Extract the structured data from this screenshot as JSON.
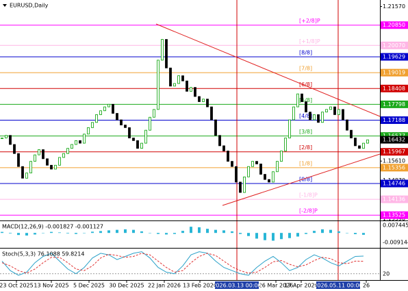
{
  "chart_data": [
    {
      "type": "candlestick",
      "title": "EURUSD,Daily",
      "values": [
        1.165,
        1.166,
        1.1625,
        1.159,
        1.154,
        1.1495,
        1.1515,
        1.156,
        1.1585,
        1.1605,
        1.157,
        1.1545,
        1.153,
        1.1545,
        1.1575,
        1.159,
        1.161,
        1.1625,
        1.164,
        1.163,
        1.1665,
        1.169,
        1.171,
        1.174,
        1.1755,
        1.177,
        1.178,
        1.1745,
        1.172,
        1.17,
        1.169,
        1.165,
        1.164,
        1.161,
        1.163,
        1.168,
        1.173,
        1.176,
        1.195,
        1.203,
        1.192,
        1.185,
        1.186,
        1.189,
        1.187,
        1.183,
        1.1845,
        1.181,
        1.179,
        1.18,
        1.177,
        1.172,
        1.166,
        1.162,
        1.16,
        1.156,
        1.154,
        1.148,
        1.144,
        1.15,
        1.154,
        1.156,
        1.155,
        1.151,
        1.149,
        1.148,
        1.152,
        1.156,
        1.16,
        1.165,
        1.172,
        1.177,
        1.182,
        1.179,
        1.175,
        1.172,
        1.174,
        1.171,
        1.175,
        1.176,
        1.177,
        1.174,
        1.176,
        1.172,
        1.168,
        1.165,
        1.162,
        1.161,
        1.163,
        1.1643
      ],
      "up_color": "#00a000",
      "down_color": "#000000",
      "xlim": [
        -0.5,
        92
      ],
      "ylim": [
        1.1332,
        1.2182
      ],
      "yticks": [
        {
          "value": 1.2157,
          "label": "1.21570"
        },
        {
          "value": 1.1561,
          "label": "1.15610"
        },
        {
          "value": 1.1487,
          "label": "1.14870"
        },
        {
          "value": 1.1339,
          "label": "1.13390"
        }
      ],
      "xticks": [
        {
          "value": 3.5,
          "label": "23 Oct 2025"
        },
        {
          "value": 12,
          "label": "13 Nov 2025"
        },
        {
          "value": 21.17,
          "label": "5 Dec 2025"
        },
        {
          "value": 30.33,
          "label": "30 Dec 2025"
        },
        {
          "value": 39.5,
          "label": "22 Jan 2026"
        },
        {
          "value": 48.17,
          "label": "13 Feb 2026"
        },
        {
          "value": 66.67,
          "label": "26 Mar 2026"
        },
        {
          "value": 72.83,
          "label": "17 Apr 2026"
        },
        {
          "value": 88.67,
          "label": "26"
        }
      ],
      "vlines": [
        {
          "value": 57.17,
          "label": "2026.03.13 00:00"
        },
        {
          "value": 81.83,
          "label": "2026.05.11 00:00"
        }
      ],
      "levels": [
        {
          "name": "[+2/8]P",
          "value": 1.2085,
          "label": "1.20850",
          "color": "#ff00ff"
        },
        {
          "name": "[+1/8]P",
          "value": 1.2007,
          "label": "1.20070",
          "color": "#ffb6e6"
        },
        {
          "name": "[8/8]",
          "value": 1.19629,
          "label": "1.19629",
          "color": "#0000cc"
        },
        {
          "name": "[7/8]",
          "value": 1.19019,
          "label": "1.19019",
          "color": "#f0a030"
        },
        {
          "name": "[6/8]",
          "value": 1.18408,
          "label": "1.18408",
          "color": "#d00000"
        },
        {
          "name": "[5/8]",
          "value": 1.17798,
          "label": "1.17798",
          "color": "#1aa81a"
        },
        {
          "name": "[4/8]",
          "value": 1.17188,
          "label": "1.17188",
          "color": "#0000cc"
        },
        {
          "name": "[3/8]",
          "value": 1.16577,
          "label": "1.16577",
          "color": "#1aa81a"
        },
        {
          "name": "[2/8]",
          "value": 1.15967,
          "label": "1.15967",
          "color": "#d00000"
        },
        {
          "name": "[1/8]",
          "value": 1.15356,
          "label": "1.15356",
          "color": "#f0a030"
        },
        {
          "name": "[0/8]",
          "value": 1.14746,
          "label": "1.14746",
          "color": "#0000cc"
        },
        {
          "name": "[-1/8]P",
          "value": 1.14136,
          "label": "1.14136",
          "color": "#ffb6e6"
        },
        {
          "name": "[-2/8]P",
          "value": 1.13525,
          "label": "1.13525",
          "color": "#ff00ff"
        }
      ],
      "last_price": {
        "value": 1.16432,
        "label": "1.16432"
      },
      "trendlines": [
        {
          "x": [
            37.5,
            92
          ],
          "values": [
            1.20896,
            1.17332
          ],
          "color": "#e02020"
        },
        {
          "x": [
            53.67,
            92
          ],
          "values": [
            1.139,
            1.1588
          ],
          "color": "#e02020"
        }
      ]
    },
    {
      "type": "bar",
      "title": "MACD(12,26,9) -0.001827 -0.001127",
      "values": [
        0.001,
        -0.0005,
        -0.002,
        -0.0025,
        -0.0015,
        0,
        0.001,
        0.0005,
        -0.0005,
        -0.001,
        0,
        0.0012,
        0.0018,
        0.0025,
        0.003,
        0.0035,
        0.003,
        0.0015,
        0,
        -0.001,
        -0.0015,
        -0.001,
        0.002,
        0.006,
        0.0055,
        0.004,
        0.003,
        0.0025,
        0.0015,
        -0.001,
        -0.003,
        -0.0055,
        -0.007,
        -0.0075,
        -0.006,
        -0.005,
        -0.0035,
        -0.001,
        0.002,
        0.0035,
        0.003,
        0.0015,
        0,
        -0.0012,
        -0.0018
      ],
      "color": "#29b6d6",
      "xlim": [
        -0.25,
        46
      ],
      "ylim": [
        -0.0138,
        0.0114
      ],
      "yticks": [
        0.007445,
        -0.009144
      ]
    },
    {
      "type": "line",
      "title": "Stoch(5,3,3) 76.1088 59.8214",
      "series": [
        {
          "color": "#29a0c8",
          "values": [
            60,
            30,
            15,
            25,
            55,
            75,
            85,
            60,
            35,
            20,
            40,
            70,
            85,
            80,
            65,
            75,
            85,
            90,
            70,
            40,
            25,
            20,
            45,
            80,
            90,
            85,
            60,
            40,
            30,
            20,
            15,
            40,
            60,
            75,
            55,
            30,
            40,
            65,
            80,
            70,
            55,
            45,
            60,
            75,
            76.1
          ]
        },
        {
          "color": "#e03030",
          "dash": true,
          "values": [
            55,
            45,
            30,
            22,
            35,
            55,
            72,
            72,
            55,
            35,
            30,
            45,
            70,
            82,
            78,
            72,
            75,
            85,
            80,
            60,
            40,
            25,
            30,
            55,
            75,
            85,
            78,
            60,
            42,
            30,
            22,
            25,
            40,
            58,
            62,
            50,
            42,
            48,
            62,
            72,
            68,
            55,
            52,
            60,
            59.8
          ]
        }
      ],
      "xlim": [
        -0.25,
        46
      ],
      "ylim": [
        0,
        100
      ],
      "yticks": [
        20
      ]
    }
  ]
}
